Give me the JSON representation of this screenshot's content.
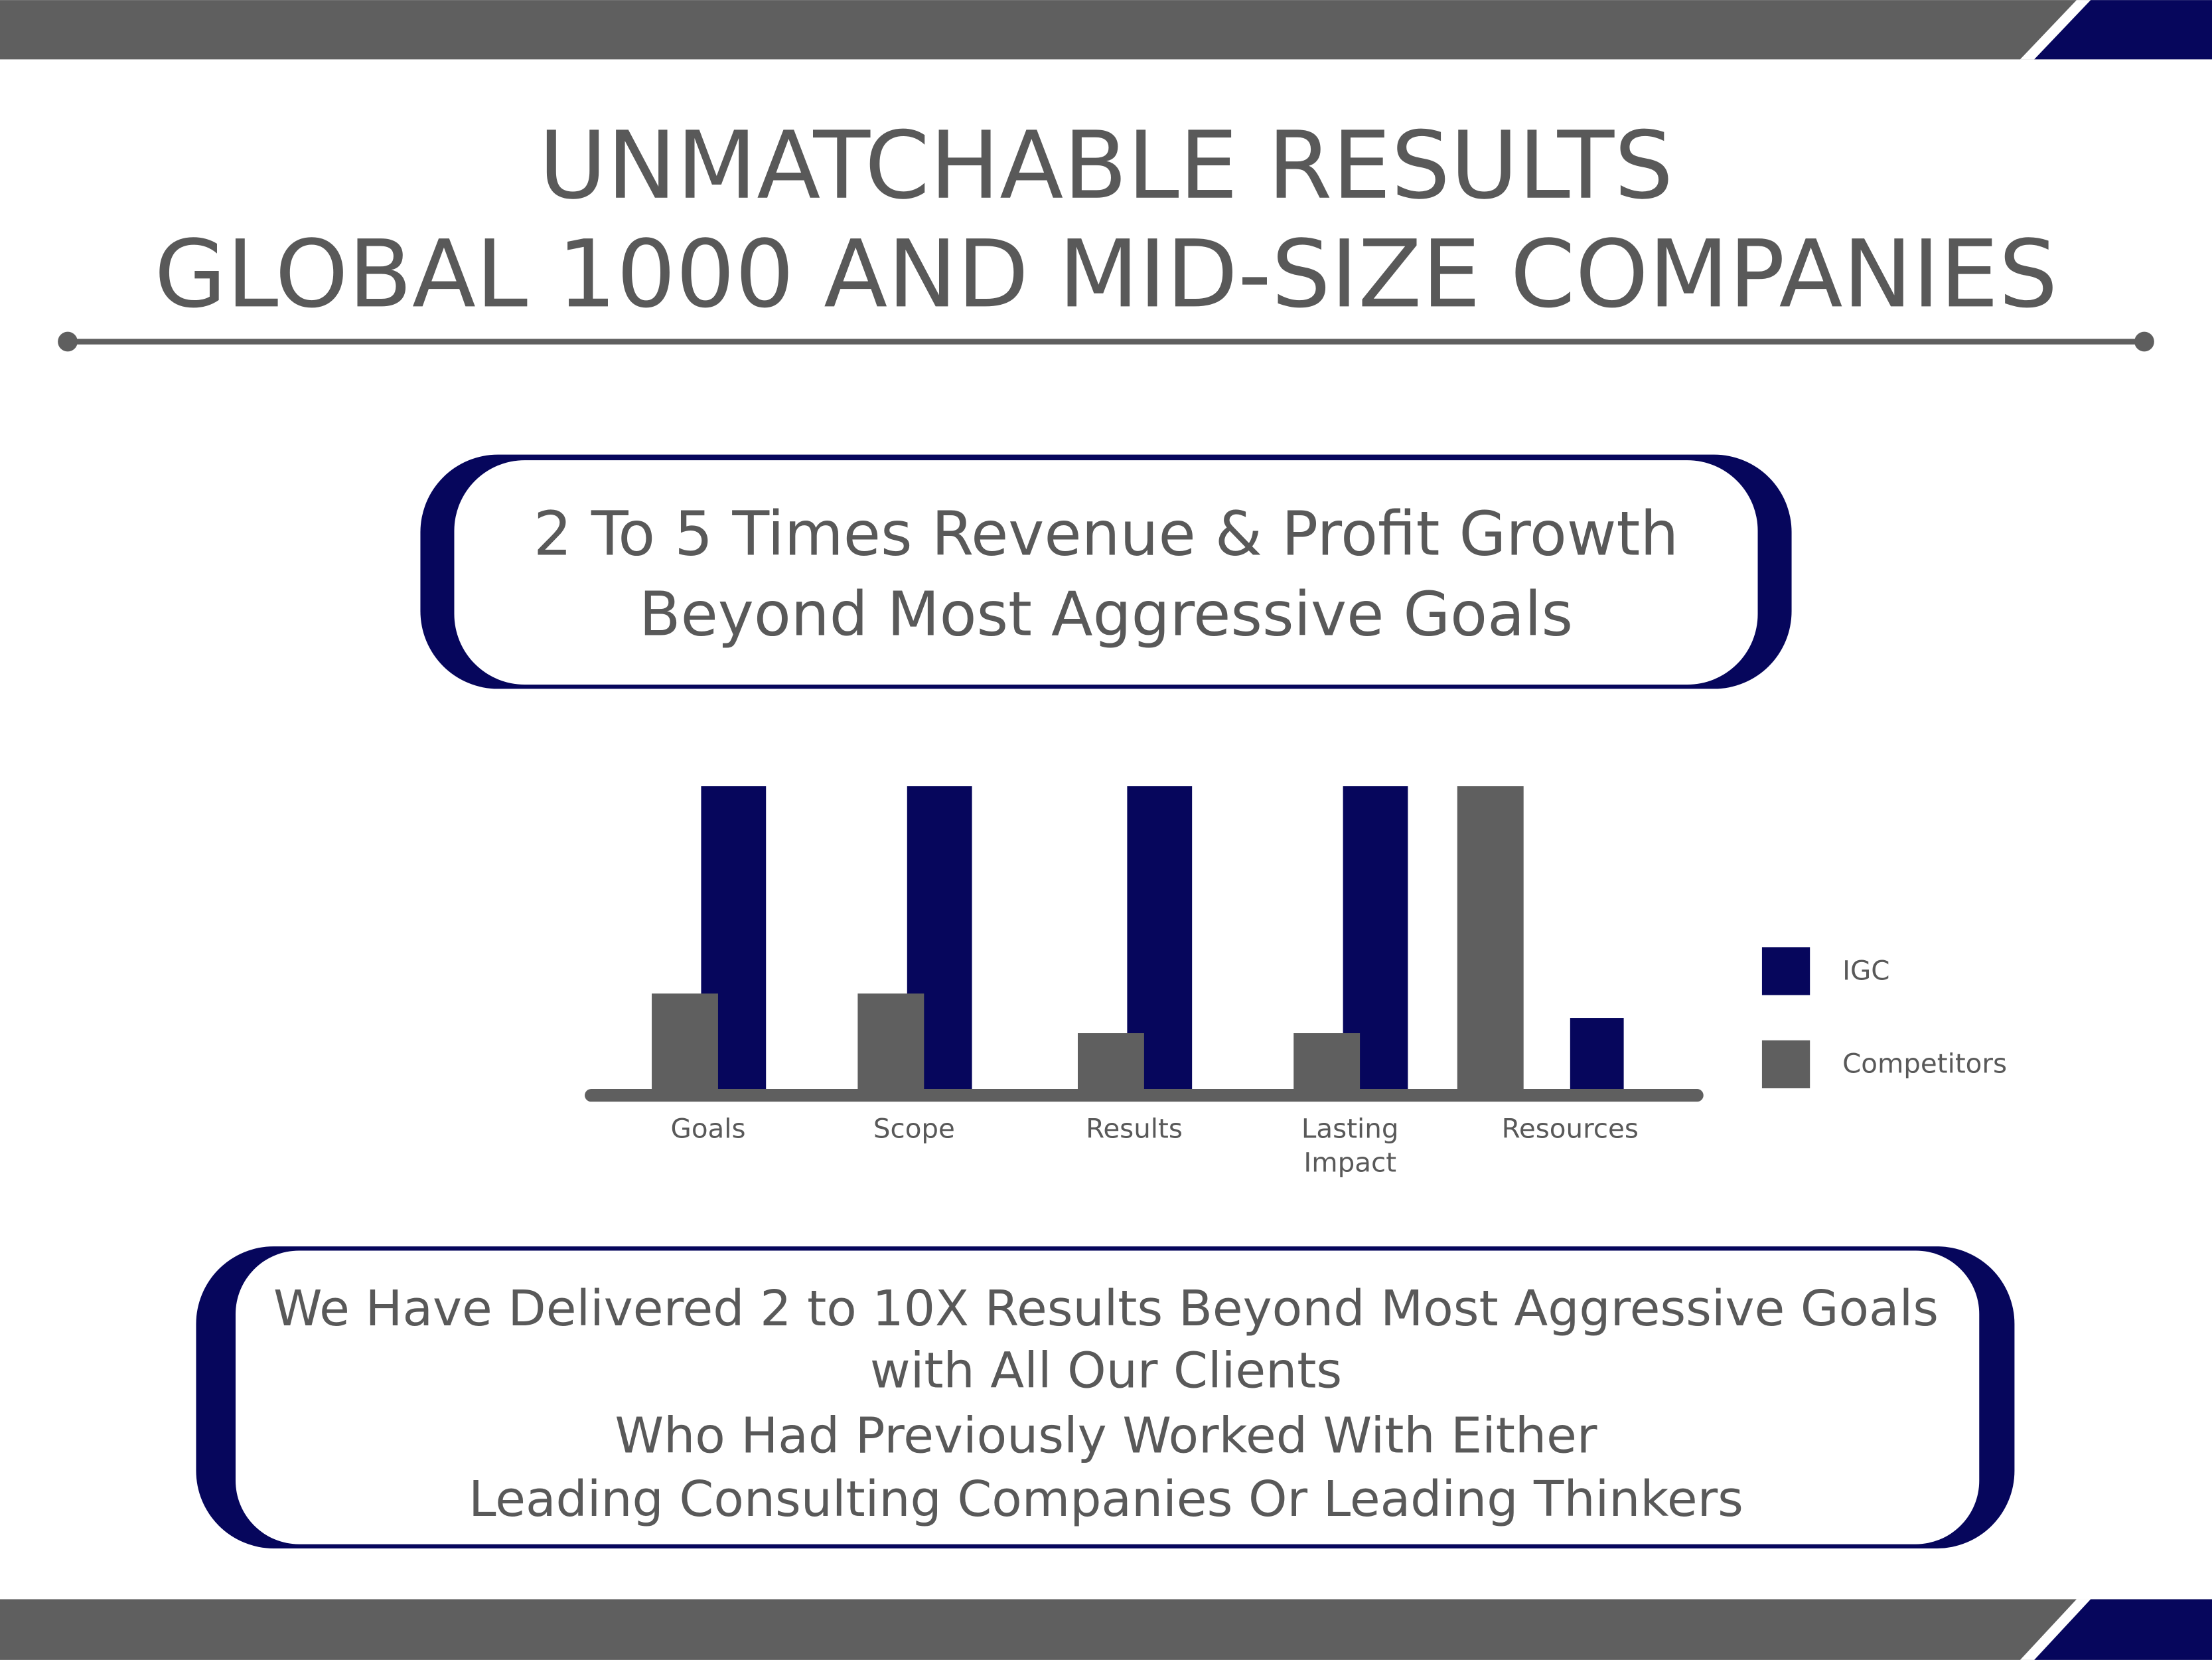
{
  "header": {
    "title_lines": [
      "UNMATCHABLE RESULTS",
      "GLOBAL 1000 AND MID-SIZE COMPANIES"
    ]
  },
  "callout": {
    "lines": [
      "2 To 5 Times Revenue & Profit Growth",
      "Beyond Most Aggressive Goals"
    ]
  },
  "chart_data": {
    "type": "bar",
    "categories": [
      "Goals",
      "Scope",
      "Results",
      "Lasting Impact",
      "Resources"
    ],
    "series": [
      {
        "name": "IGC",
        "color": "#06065c",
        "values": [
          100,
          100,
          100,
          100,
          24
        ]
      },
      {
        "name": "Competitors",
        "color": "#5f5f5f",
        "values": [
          32,
          32,
          19,
          19,
          100
        ]
      }
    ],
    "legend": "right"
  },
  "footer": {
    "lines": [
      "We Have Delivered 2 to 10X Results Beyond Most Aggressive Goals",
      "with All Our Clients",
      "Who Had Previously Worked With Either",
      "Leading Consulting Companies Or Leading Thinkers"
    ]
  }
}
